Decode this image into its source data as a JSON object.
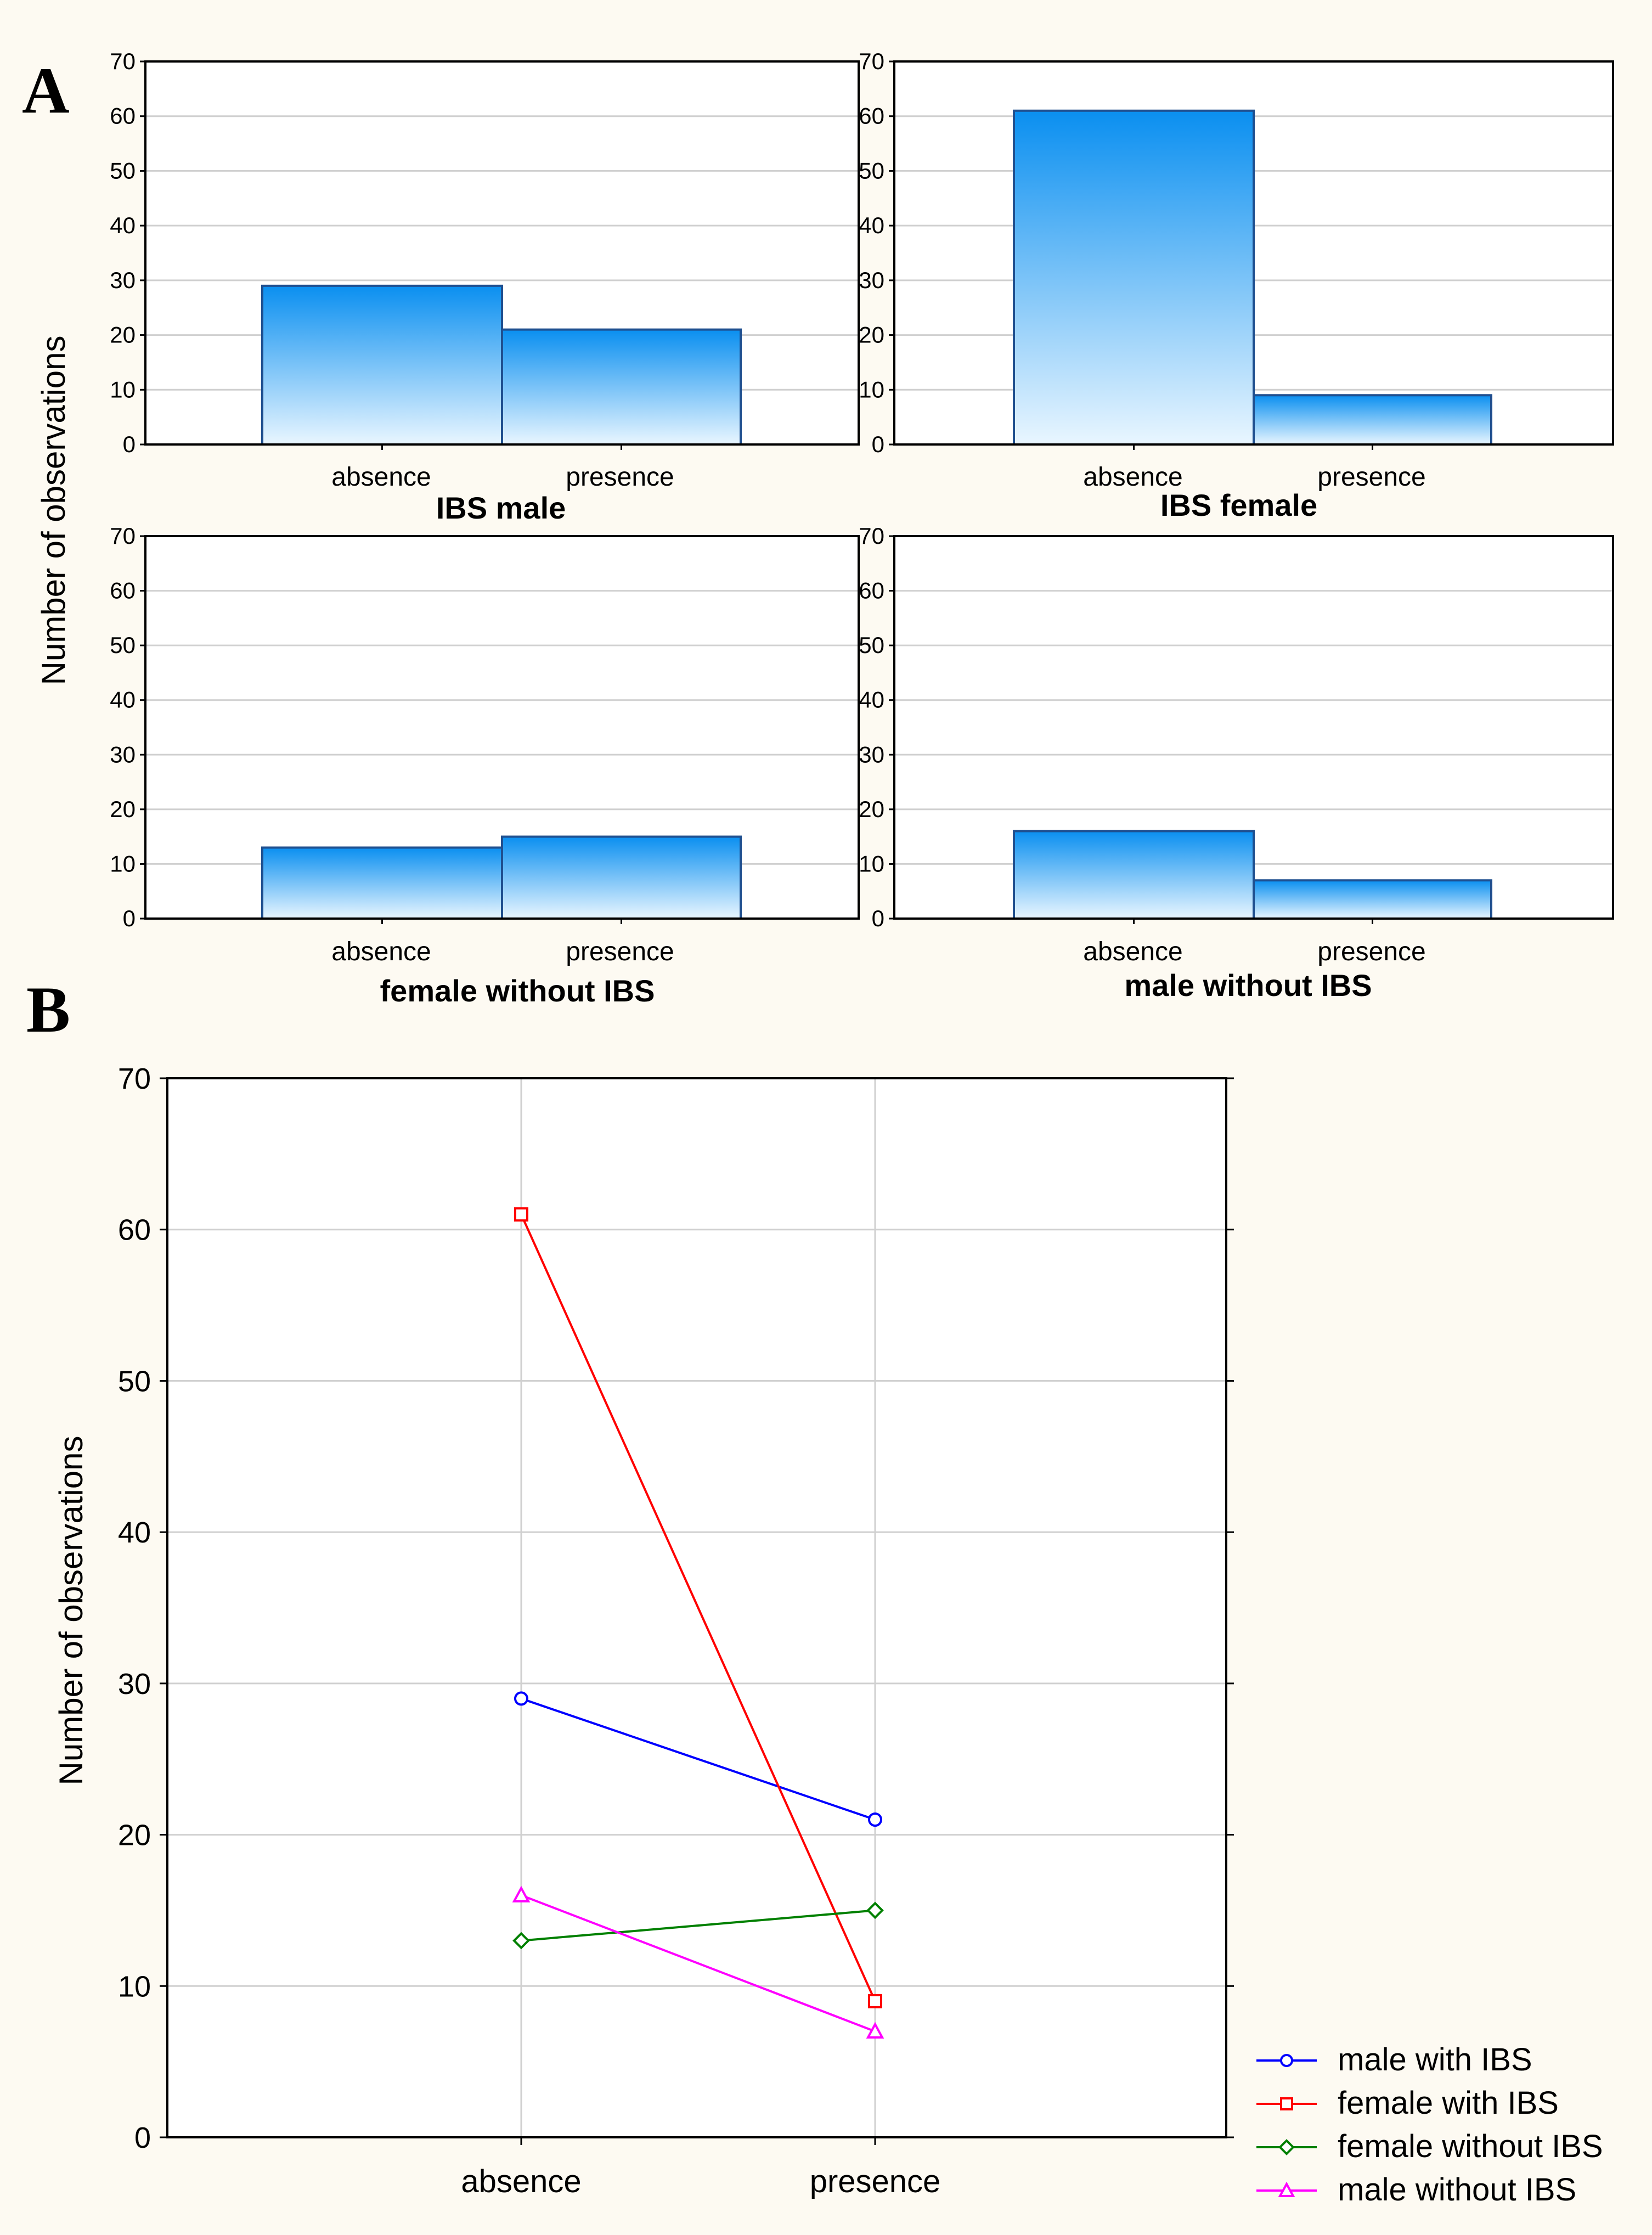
{
  "colors": {
    "background": "#fdfaf2",
    "bar_top": "#0a8ff0",
    "bar_bottom": "#e9f6ff",
    "bar_stroke": "#1f4f8f",
    "grid": "#d0d0d0",
    "male_with_ibs": "#0000ff",
    "female_with_ibs": "#ff0000",
    "female_without_ibs": "#008000",
    "male_without_ibs": "#ff00ff"
  },
  "panel_a": {
    "label": "A"
  },
  "panel_b": {
    "label": "B"
  },
  "chart_data": [
    {
      "type": "bar",
      "title": "IBS male",
      "categories": [
        "absence",
        "presence"
      ],
      "values": [
        29,
        21
      ],
      "ylabel": "Number of observations",
      "ylim": [
        0,
        70
      ],
      "yticks": [
        0,
        10,
        20,
        30,
        40,
        50,
        60,
        70
      ]
    },
    {
      "type": "bar",
      "title": "IBS female",
      "categories": [
        "absence",
        "presence"
      ],
      "values": [
        61,
        9
      ],
      "ylim": [
        0,
        70
      ],
      "yticks": [
        0,
        10,
        20,
        30,
        40,
        50,
        60,
        70
      ]
    },
    {
      "type": "bar",
      "title": "female without IBS",
      "categories": [
        "absence",
        "presence"
      ],
      "values": [
        13,
        15
      ],
      "ylim": [
        0,
        70
      ],
      "yticks": [
        0,
        10,
        20,
        30,
        40,
        50,
        60,
        70
      ]
    },
    {
      "type": "bar",
      "title": "male without IBS",
      "categories": [
        "absence",
        "presence"
      ],
      "values": [
        16,
        7
      ],
      "ylim": [
        0,
        70
      ],
      "yticks": [
        0,
        10,
        20,
        30,
        40,
        50,
        60,
        70
      ]
    },
    {
      "type": "line",
      "categories": [
        "absence",
        "presence"
      ],
      "ylabel": "Number of observations",
      "ylim": [
        0,
        70
      ],
      "yticks": [
        0,
        10,
        20,
        30,
        40,
        50,
        60,
        70
      ],
      "grid": true,
      "legend": "bottom-right",
      "series": [
        {
          "name": "male with IBS",
          "values": [
            29,
            21
          ],
          "marker": "circle",
          "color": "#0000ff"
        },
        {
          "name": "female with IBS",
          "values": [
            61,
            9
          ],
          "marker": "square",
          "color": "#ff0000"
        },
        {
          "name": "female without IBS",
          "values": [
            13,
            15
          ],
          "marker": "diamond",
          "color": "#008000"
        },
        {
          "name": "male without IBS",
          "values": [
            16,
            7
          ],
          "marker": "triangle",
          "color": "#ff00ff"
        }
      ]
    }
  ]
}
